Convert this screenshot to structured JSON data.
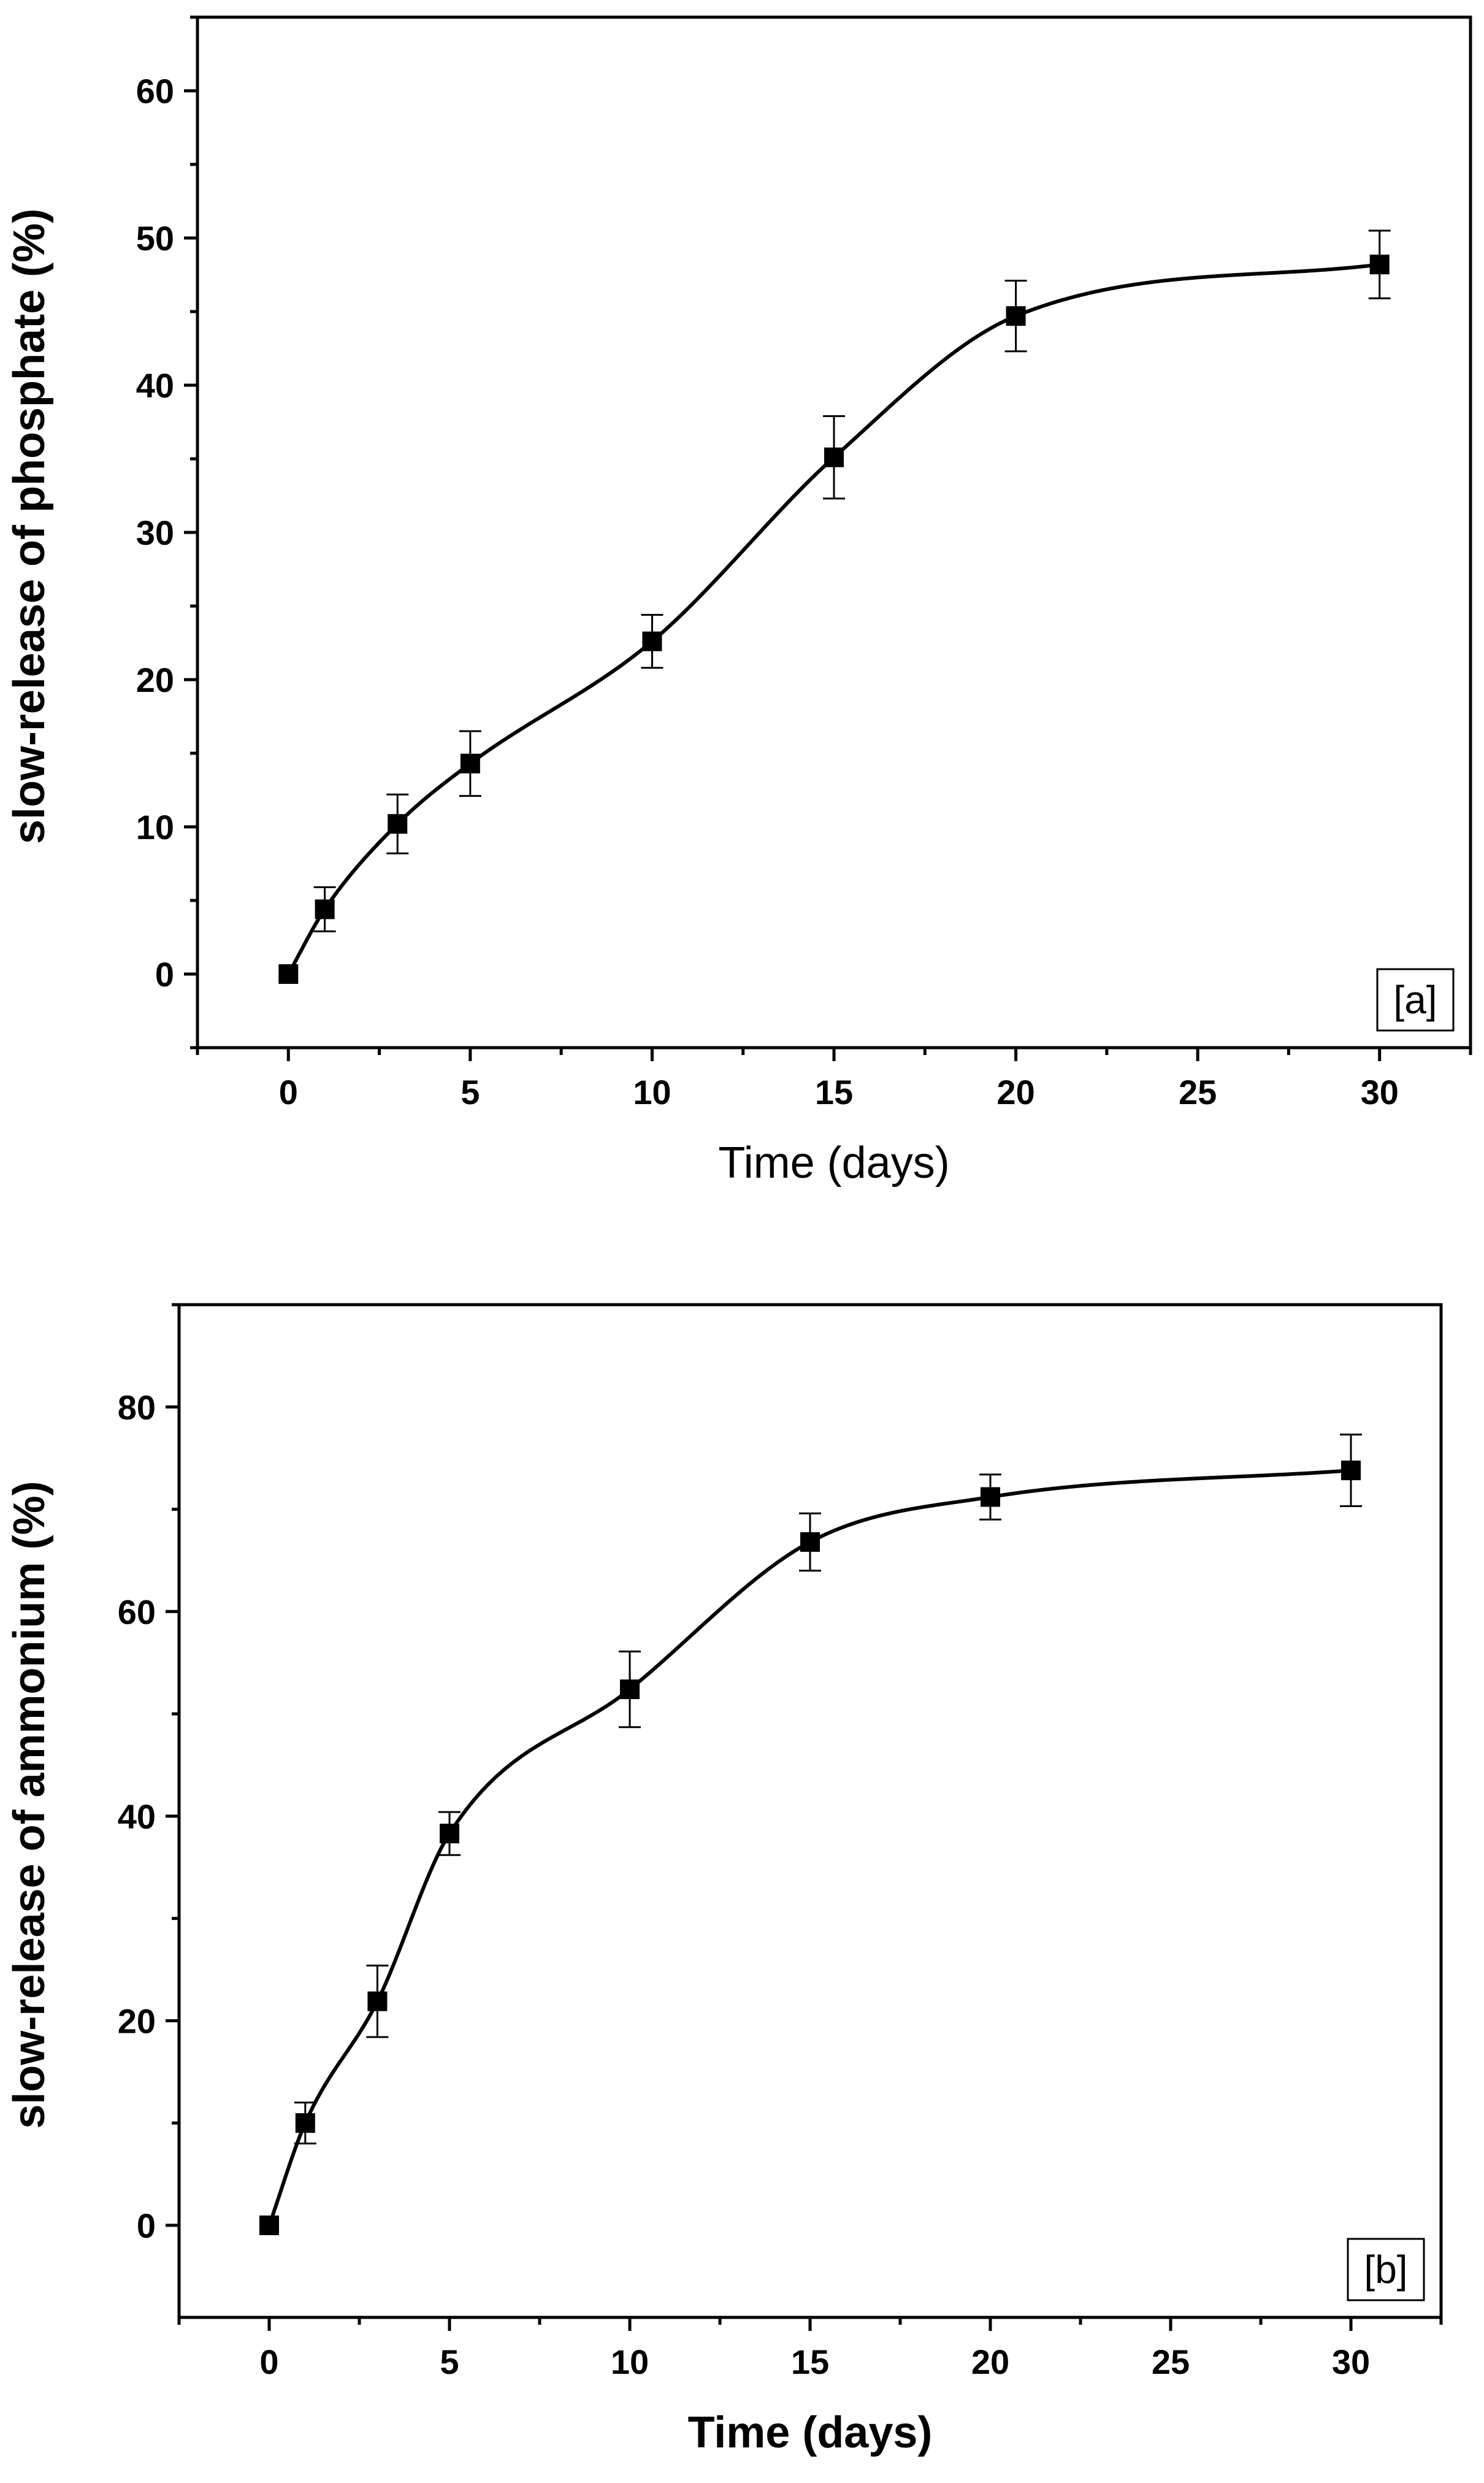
{
  "chart_data": [
    {
      "type": "line",
      "panel_label": "[a]",
      "xlabel": "Time (days)",
      "ylabel": "slow-release of phosphate (%)",
      "xlim": [
        -2.5,
        32.5
      ],
      "ylim": [
        -5,
        65
      ],
      "xticks": [
        0,
        5,
        10,
        15,
        20,
        25,
        30
      ],
      "yticks": [
        0,
        10,
        20,
        30,
        40,
        50,
        60
      ],
      "grid": false,
      "series": [
        {
          "name": "phosphate",
          "marker": "square",
          "x": [
            0,
            1,
            3,
            5,
            10,
            15,
            20,
            30
          ],
          "values": [
            0,
            4.4,
            10.2,
            14.3,
            22.6,
            35.1,
            44.7,
            48.2
          ],
          "errors": [
            0,
            1.5,
            2.0,
            2.2,
            1.8,
            2.8,
            2.4,
            2.3
          ]
        }
      ]
    },
    {
      "type": "line",
      "panel_label": "[b]",
      "xlabel": "Time (days)",
      "ylabel": "slow-release of ammonium (%)",
      "xlim": [
        -2.5,
        32.5
      ],
      "ylim": [
        -9,
        90
      ],
      "xticks": [
        0,
        5,
        10,
        15,
        20,
        25,
        30
      ],
      "yticks": [
        0,
        20,
        40,
        60,
        80
      ],
      "grid": false,
      "series": [
        {
          "name": "ammonium",
          "marker": "square",
          "x": [
            0,
            1,
            3,
            5,
            10,
            15,
            20,
            30
          ],
          "values": [
            0,
            10.0,
            21.9,
            38.3,
            52.4,
            66.8,
            71.2,
            73.8
          ],
          "errors": [
            0,
            2.0,
            3.5,
            2.1,
            3.7,
            2.8,
            2.2,
            3.5
          ]
        }
      ]
    }
  ]
}
